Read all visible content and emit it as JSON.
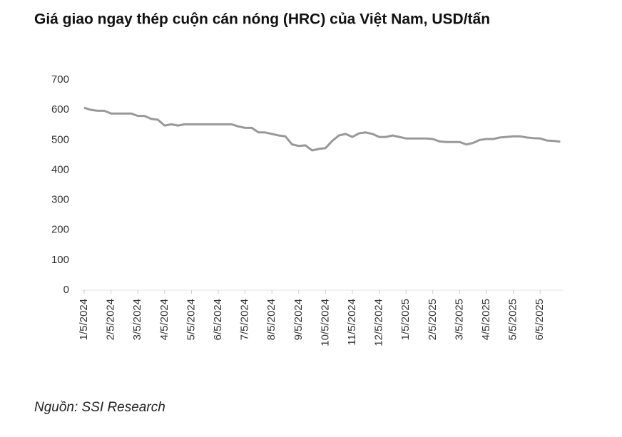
{
  "chart_data": {
    "type": "line",
    "title": "Giá giao ngay thép cuộn cán nóng (HRC) của Việt Nam, USD/tấn",
    "source": "Nguồn: SSI Research",
    "categories": [
      "1/5/2024",
      null,
      null,
      null,
      "2/5/2024",
      null,
      null,
      null,
      "3/5/2024",
      null,
      null,
      null,
      "4/5/2024",
      null,
      null,
      null,
      "5/5/2024",
      null,
      null,
      null,
      "6/5/2024",
      null,
      null,
      null,
      "7/5/2024",
      null,
      null,
      null,
      "8/5/2024",
      null,
      null,
      null,
      "9/5/2024",
      null,
      null,
      null,
      "10/5/2024",
      null,
      null,
      null,
      "11/5/2024",
      null,
      null,
      null,
      "12/5/2024",
      null,
      null,
      null,
      "1/5/2025",
      null,
      null,
      null,
      "2/5/2025",
      null,
      null,
      null,
      "3/5/2025",
      null,
      null,
      null,
      "4/5/2025",
      null,
      null,
      null,
      "5/5/2025",
      null,
      null,
      null,
      "6/5/2025",
      null,
      null,
      null
    ],
    "values": [
      607,
      600,
      597,
      597,
      588,
      588,
      588,
      588,
      580,
      580,
      570,
      567,
      548,
      552,
      548,
      552,
      552,
      552,
      552,
      552,
      552,
      552,
      552,
      545,
      540,
      540,
      525,
      525,
      520,
      515,
      512,
      485,
      480,
      482,
      465,
      470,
      473,
      497,
      515,
      520,
      510,
      522,
      525,
      520,
      510,
      510,
      515,
      510,
      505,
      505,
      505,
      505,
      503,
      495,
      493,
      493,
      493,
      485,
      490,
      500,
      503,
      503,
      508,
      510,
      512,
      512,
      508,
      506,
      505,
      498,
      497,
      494
    ],
    "color": "#999999",
    "ylim": [
      0,
      700
    ],
    "yticks": [
      0,
      100,
      200,
      300,
      400,
      500,
      600,
      700
    ],
    "grid": false
  }
}
